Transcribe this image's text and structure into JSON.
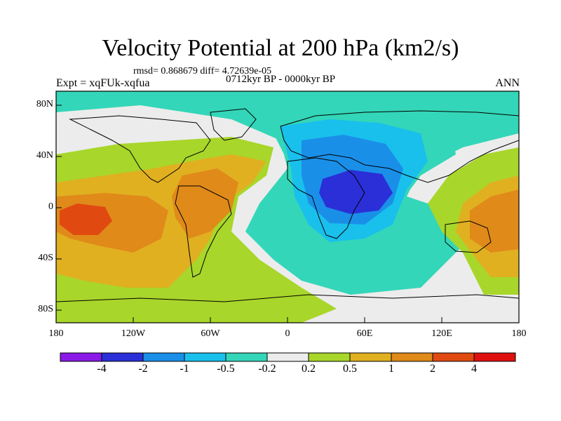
{
  "title": "Velocity Potential at 200 hPa (km2/s)",
  "stats": "rmsd= 0.868679 diff= 4.72639e-05",
  "experiment": "Expt = xqFUk-xqfua",
  "period": "0712kyr BP - 0000kyr BP",
  "season": "ANN",
  "map": {
    "lat_labels": [
      "80N",
      "40N",
      "0",
      "40S",
      "80S"
    ],
    "lon_labels": [
      "180",
      "120W",
      "60W",
      "0",
      "60E",
      "120E",
      "180"
    ],
    "background_color": "#33d6b8",
    "fields": [
      {
        "name": "positive-region-west",
        "level": "0.2",
        "color": "#a8d62a"
      },
      {
        "name": "positive-region-moderate",
        "level": "0.5",
        "color": "#e0b020"
      },
      {
        "name": "positive-region-strong",
        "level": "1",
        "color": "#e08a1a"
      },
      {
        "name": "positive-region-peak",
        "level": "2",
        "color": "#e04a10"
      },
      {
        "name": "neutral-band",
        "level": "-0.2",
        "color": "#ececec"
      },
      {
        "name": "negative-region-weak",
        "level": "-0.5",
        "color": "#33d6b8"
      },
      {
        "name": "negative-region-moderate",
        "level": "-1",
        "color": "#19c0ec"
      },
      {
        "name": "negative-region-strong",
        "level": "-2",
        "color": "#1a8fe8"
      },
      {
        "name": "negative-region-peak",
        "level": "-4",
        "color": "#2b2fd8"
      }
    ]
  },
  "colorbar": {
    "colors": [
      "#8a1ae8",
      "#2b2fd8",
      "#1a8fe8",
      "#19c0ec",
      "#33d6b8",
      "#ececec",
      "#a8d62a",
      "#e0b020",
      "#e08a1a",
      "#e04a10",
      "#e01010"
    ],
    "labels": [
      "-4",
      "-2",
      "-1",
      "-0.5",
      "-0.2",
      "0.2",
      "0.5",
      "1",
      "2",
      "4"
    ]
  }
}
